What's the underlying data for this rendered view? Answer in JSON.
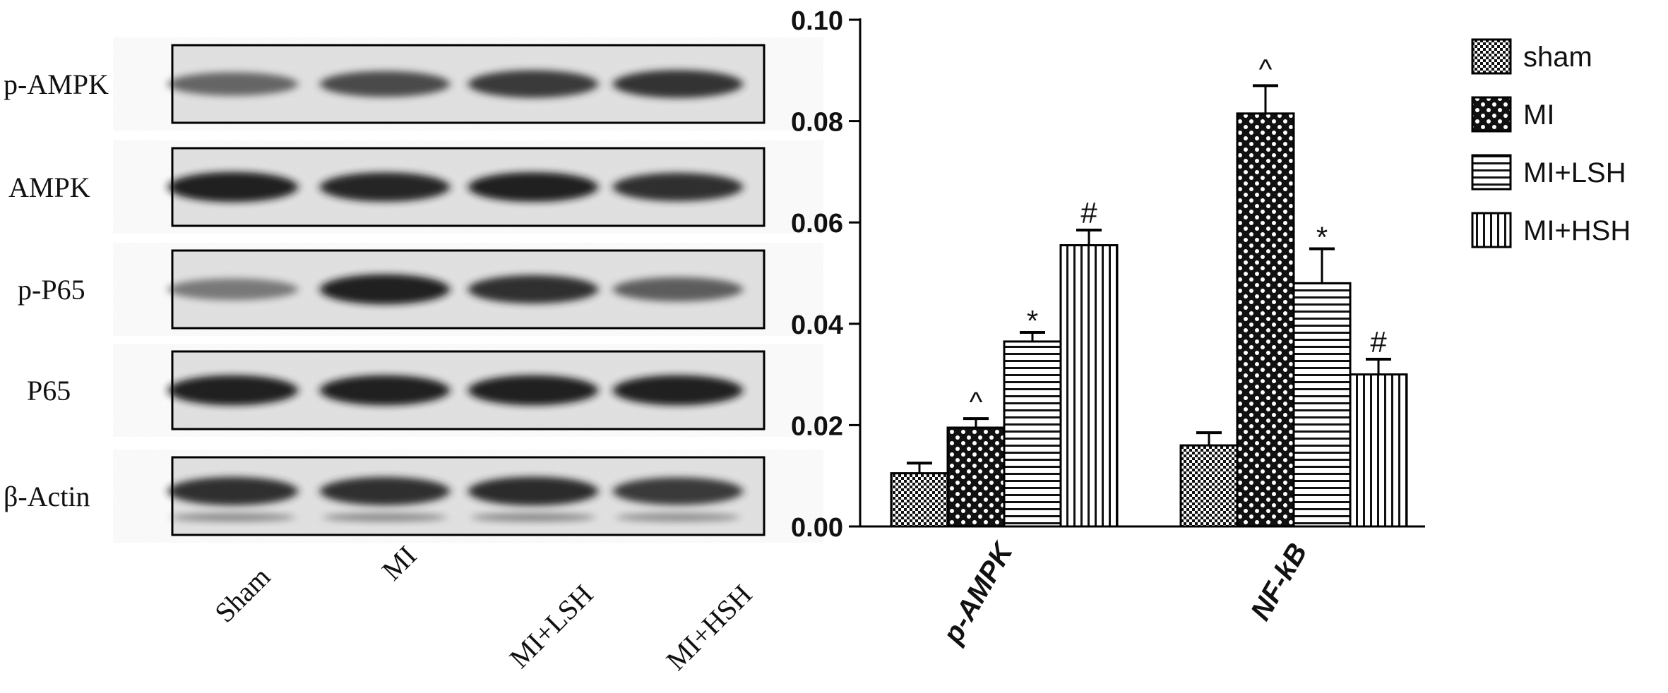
{
  "blot": {
    "rows": [
      {
        "label": "p-AMPK",
        "bands": [
          0.55,
          0.7,
          0.8,
          0.82
        ]
      },
      {
        "label": "AMPK",
        "bands": [
          0.95,
          0.9,
          0.92,
          0.85
        ]
      },
      {
        "label": "p-P65",
        "bands": [
          0.45,
          0.95,
          0.85,
          0.6
        ]
      },
      {
        "label": "P65",
        "bands": [
          0.95,
          0.95,
          0.95,
          0.95
        ]
      },
      {
        "label": "β-Actin",
        "bands": [
          0.85,
          0.85,
          0.88,
          0.8
        ]
      }
    ],
    "lanes": [
      "Sham",
      "MI",
      "MI+LSH",
      "MI+HSH"
    ]
  },
  "chart_data": {
    "type": "bar",
    "categories": [
      "p-AMPK",
      "NF-kB"
    ],
    "series": [
      {
        "name": "sham",
        "values": [
          0.0105,
          0.016
        ],
        "errors": [
          0.002,
          0.0025
        ],
        "pattern": "fine-checker",
        "markers": [
          "",
          ""
        ]
      },
      {
        "name": "MI",
        "values": [
          0.0195,
          0.0815
        ],
        "errors": [
          0.0018,
          0.0055
        ],
        "pattern": "coarse-checker",
        "markers": [
          "^",
          "^"
        ]
      },
      {
        "name": "MI+LSH",
        "values": [
          0.0365,
          0.048
        ],
        "errors": [
          0.0018,
          0.0068
        ],
        "pattern": "horizontal-lines",
        "markers": [
          "*",
          "*"
        ]
      },
      {
        "name": "MI+HSH",
        "values": [
          0.0555,
          0.03
        ],
        "errors": [
          0.003,
          0.003
        ],
        "pattern": "vertical-lines",
        "markers": [
          "#",
          "#"
        ]
      }
    ],
    "ylim": [
      0,
      0.1
    ],
    "yticks": [
      "0.00",
      "0.02",
      "0.04",
      "0.06",
      "0.08",
      "0.10"
    ],
    "legend_position": "top-right",
    "grid": false
  }
}
